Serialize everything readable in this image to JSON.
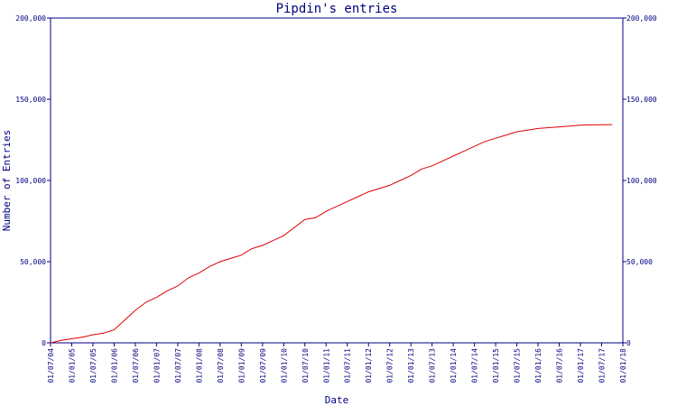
{
  "chart_data": {
    "type": "line",
    "title": "Pipdin's entries",
    "xlabel": "Date",
    "ylabel": "Number of Entries",
    "x_ticks": [
      "01/07/04",
      "01/01/05",
      "01/07/05",
      "01/01/06",
      "01/07/06",
      "01/01/07",
      "01/07/07",
      "01/01/08",
      "01/07/08",
      "01/01/09",
      "01/07/09",
      "01/01/10",
      "01/07/10",
      "01/01/11",
      "01/07/11",
      "01/01/12",
      "01/07/12",
      "01/01/13",
      "01/07/13",
      "01/01/14",
      "01/07/14",
      "01/01/15",
      "01/07/15",
      "01/01/16",
      "01/07/16",
      "01/01/17",
      "01/07/17",
      "01/01/18"
    ],
    "y_ticks": [
      0,
      50000,
      100000,
      150000,
      200000
    ],
    "y_tick_labels": [
      "0",
      "50,000",
      "100,000",
      "150,000",
      "200,000"
    ],
    "ylim": [
      0,
      200000
    ],
    "xlim": [
      2004.5,
      2018.0
    ],
    "grid": false,
    "legend": "none",
    "line_color": "#e00000",
    "axis_color": "#000080",
    "series": [
      {
        "x": [
          2004.5,
          2004.75,
          2005.0,
          2005.25,
          2005.5,
          2005.75,
          2006.0,
          2006.25,
          2006.5,
          2006.75,
          2007.0,
          2007.25,
          2007.5,
          2007.75,
          2008.0,
          2008.25,
          2008.5,
          2008.75,
          2009.0,
          2009.25,
          2009.5,
          2009.75,
          2010.0,
          2010.25,
          2010.5,
          2010.75,
          2011.0,
          2011.25,
          2011.5,
          2011.75,
          2012.0,
          2012.25,
          2012.5,
          2012.75,
          2013.0,
          2013.25,
          2013.5,
          2013.75,
          2014.0,
          2014.25,
          2014.5,
          2014.75,
          2015.0,
          2015.25,
          2015.5,
          2015.75,
          2016.0,
          2016.25,
          2016.5,
          2016.75,
          2017.0,
          2017.25,
          2017.5,
          2017.75
        ],
        "y": [
          0,
          1500,
          2500,
          3500,
          5000,
          6000,
          8000,
          14000,
          20000,
          25000,
          28000,
          32000,
          35000,
          40000,
          43000,
          47000,
          50000,
          52000,
          54000,
          58000,
          60000,
          63000,
          66000,
          71000,
          76000,
          77000,
          81000,
          84000,
          87000,
          90000,
          93000,
          95000,
          97000,
          100000,
          103000,
          107000,
          109000,
          112000,
          115000,
          118000,
          121000,
          124000,
          126000,
          128000,
          130000,
          131000,
          132000,
          132500,
          133000,
          133500,
          134000,
          134200,
          134300,
          134400
        ]
      }
    ]
  }
}
